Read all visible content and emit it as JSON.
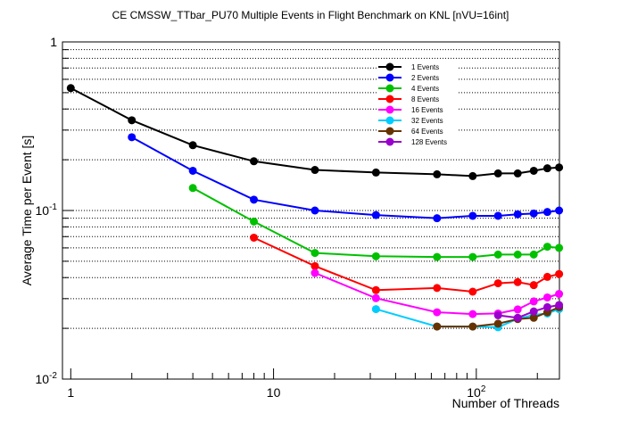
{
  "chart_data": {
    "type": "line",
    "title": "CE CMSSW_TTbar_PU70 Multiple Events in Flight Benchmark on KNL [nVU=16int]",
    "xlabel": "Number of Threads",
    "ylabel": "Average Time per Event [s]",
    "xscale": "log",
    "yscale": "log",
    "xlim": [
      0.91,
      257
    ],
    "ylim": [
      0.01,
      1
    ],
    "x_tick_labels": [
      {
        "value": 1,
        "label": "1"
      },
      {
        "value": 10,
        "label": "10"
      },
      {
        "value": 100,
        "label": "10",
        "exp": "2"
      }
    ],
    "y_tick_labels": [
      {
        "value": 1,
        "label": "1"
      },
      {
        "value": 0.1,
        "label": "10",
        "exp": "-1"
      },
      {
        "value": 0.01,
        "label": "10",
        "exp": "-2"
      }
    ],
    "grid": "horizontal dotted",
    "legend_position": "top-right",
    "series": [
      {
        "name": "1 Events",
        "color": "#000000",
        "x": [
          1,
          2,
          4,
          8,
          16,
          32,
          64,
          96,
          128,
          160,
          192,
          224,
          256
        ],
        "y": [
          0.532,
          0.343,
          0.244,
          0.196,
          0.174,
          0.168,
          0.164,
          0.16,
          0.166,
          0.166,
          0.172,
          0.178,
          0.18
        ]
      },
      {
        "name": "2 Events",
        "color": "#0000ff",
        "x": [
          2,
          4,
          8,
          16,
          32,
          64,
          96,
          128,
          160,
          192,
          224,
          256
        ],
        "y": [
          0.272,
          0.172,
          0.116,
          0.1,
          0.094,
          0.09,
          0.093,
          0.093,
          0.095,
          0.096,
          0.098,
          0.1
        ]
      },
      {
        "name": "4 Events",
        "color": "#00c000",
        "x": [
          4,
          8,
          16,
          32,
          64,
          96,
          128,
          160,
          192,
          224,
          256
        ],
        "y": [
          0.136,
          0.086,
          0.056,
          0.0535,
          0.053,
          0.053,
          0.0548,
          0.0548,
          0.0548,
          0.061,
          0.06
        ]
      },
      {
        "name": "8 Events",
        "color": "#ff0000",
        "x": [
          8,
          16,
          32,
          64,
          96,
          128,
          160,
          192,
          224,
          256
        ],
        "y": [
          0.069,
          0.0468,
          0.0337,
          0.0347,
          0.033,
          0.037,
          0.0376,
          0.0361,
          0.0404,
          0.042
        ]
      },
      {
        "name": "16 Events",
        "color": "#ff00ff",
        "x": [
          16,
          32,
          64,
          96,
          128,
          160,
          192,
          224,
          256
        ],
        "y": [
          0.0426,
          0.0302,
          0.0249,
          0.0243,
          0.0245,
          0.0259,
          0.0289,
          0.0305,
          0.032
        ]
      },
      {
        "name": "32 Events",
        "color": "#00ccff",
        "x": [
          32,
          64,
          96,
          128,
          160,
          192,
          224,
          256
        ],
        "y": [
          0.026,
          0.0205,
          0.0205,
          0.0203,
          0.0228,
          0.024,
          0.0245,
          0.026
        ]
      },
      {
        "name": "64 Events",
        "color": "#663300",
        "x": [
          64,
          96,
          128,
          160,
          192,
          224,
          256
        ],
        "y": [
          0.0205,
          0.0205,
          0.0213,
          0.0227,
          0.0231,
          0.0249,
          0.0267
        ]
      },
      {
        "name": "128 Events",
        "color": "#9900cc",
        "x": [
          128,
          160,
          192,
          224,
          256
        ],
        "y": [
          0.0239,
          0.0231,
          0.0252,
          0.0267,
          0.0275
        ]
      }
    ]
  }
}
